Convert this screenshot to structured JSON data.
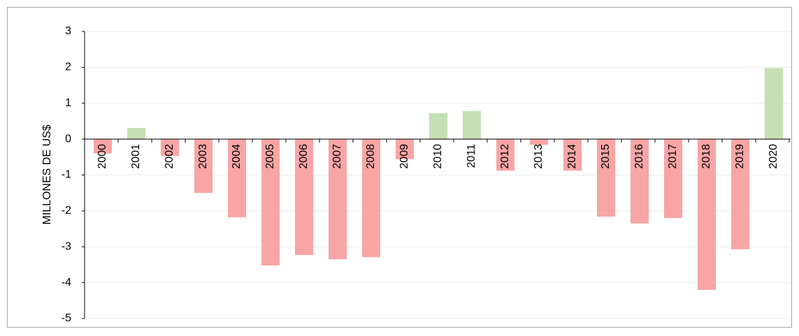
{
  "chart_data": {
    "type": "bar",
    "y_label": "MILLONES DE US$",
    "categories": [
      "2000",
      "2001",
      "2002",
      "2003",
      "2004",
      "2005",
      "2006",
      "2007",
      "2008",
      "2009",
      "2010",
      "2011",
      "2012",
      "2013",
      "2014",
      "2015",
      "2016",
      "2017",
      "2018",
      "2019",
      "2020"
    ],
    "values": [
      -0.4,
      0.31,
      -0.47,
      -1.5,
      -2.18,
      -3.52,
      -3.23,
      -3.35,
      -3.29,
      -0.56,
      0.72,
      0.78,
      -0.88,
      -0.16,
      -0.88,
      -2.16,
      -2.35,
      -2.2,
      -4.2,
      -3.07,
      1.98
    ],
    "color_positive": "#c5e0b4",
    "color_negative": "#f8a5a5",
    "ylim": [
      -5,
      3
    ],
    "yticks": [
      -5,
      -4,
      -3,
      -2,
      -1,
      0,
      1,
      2,
      3
    ],
    "grid": true
  }
}
